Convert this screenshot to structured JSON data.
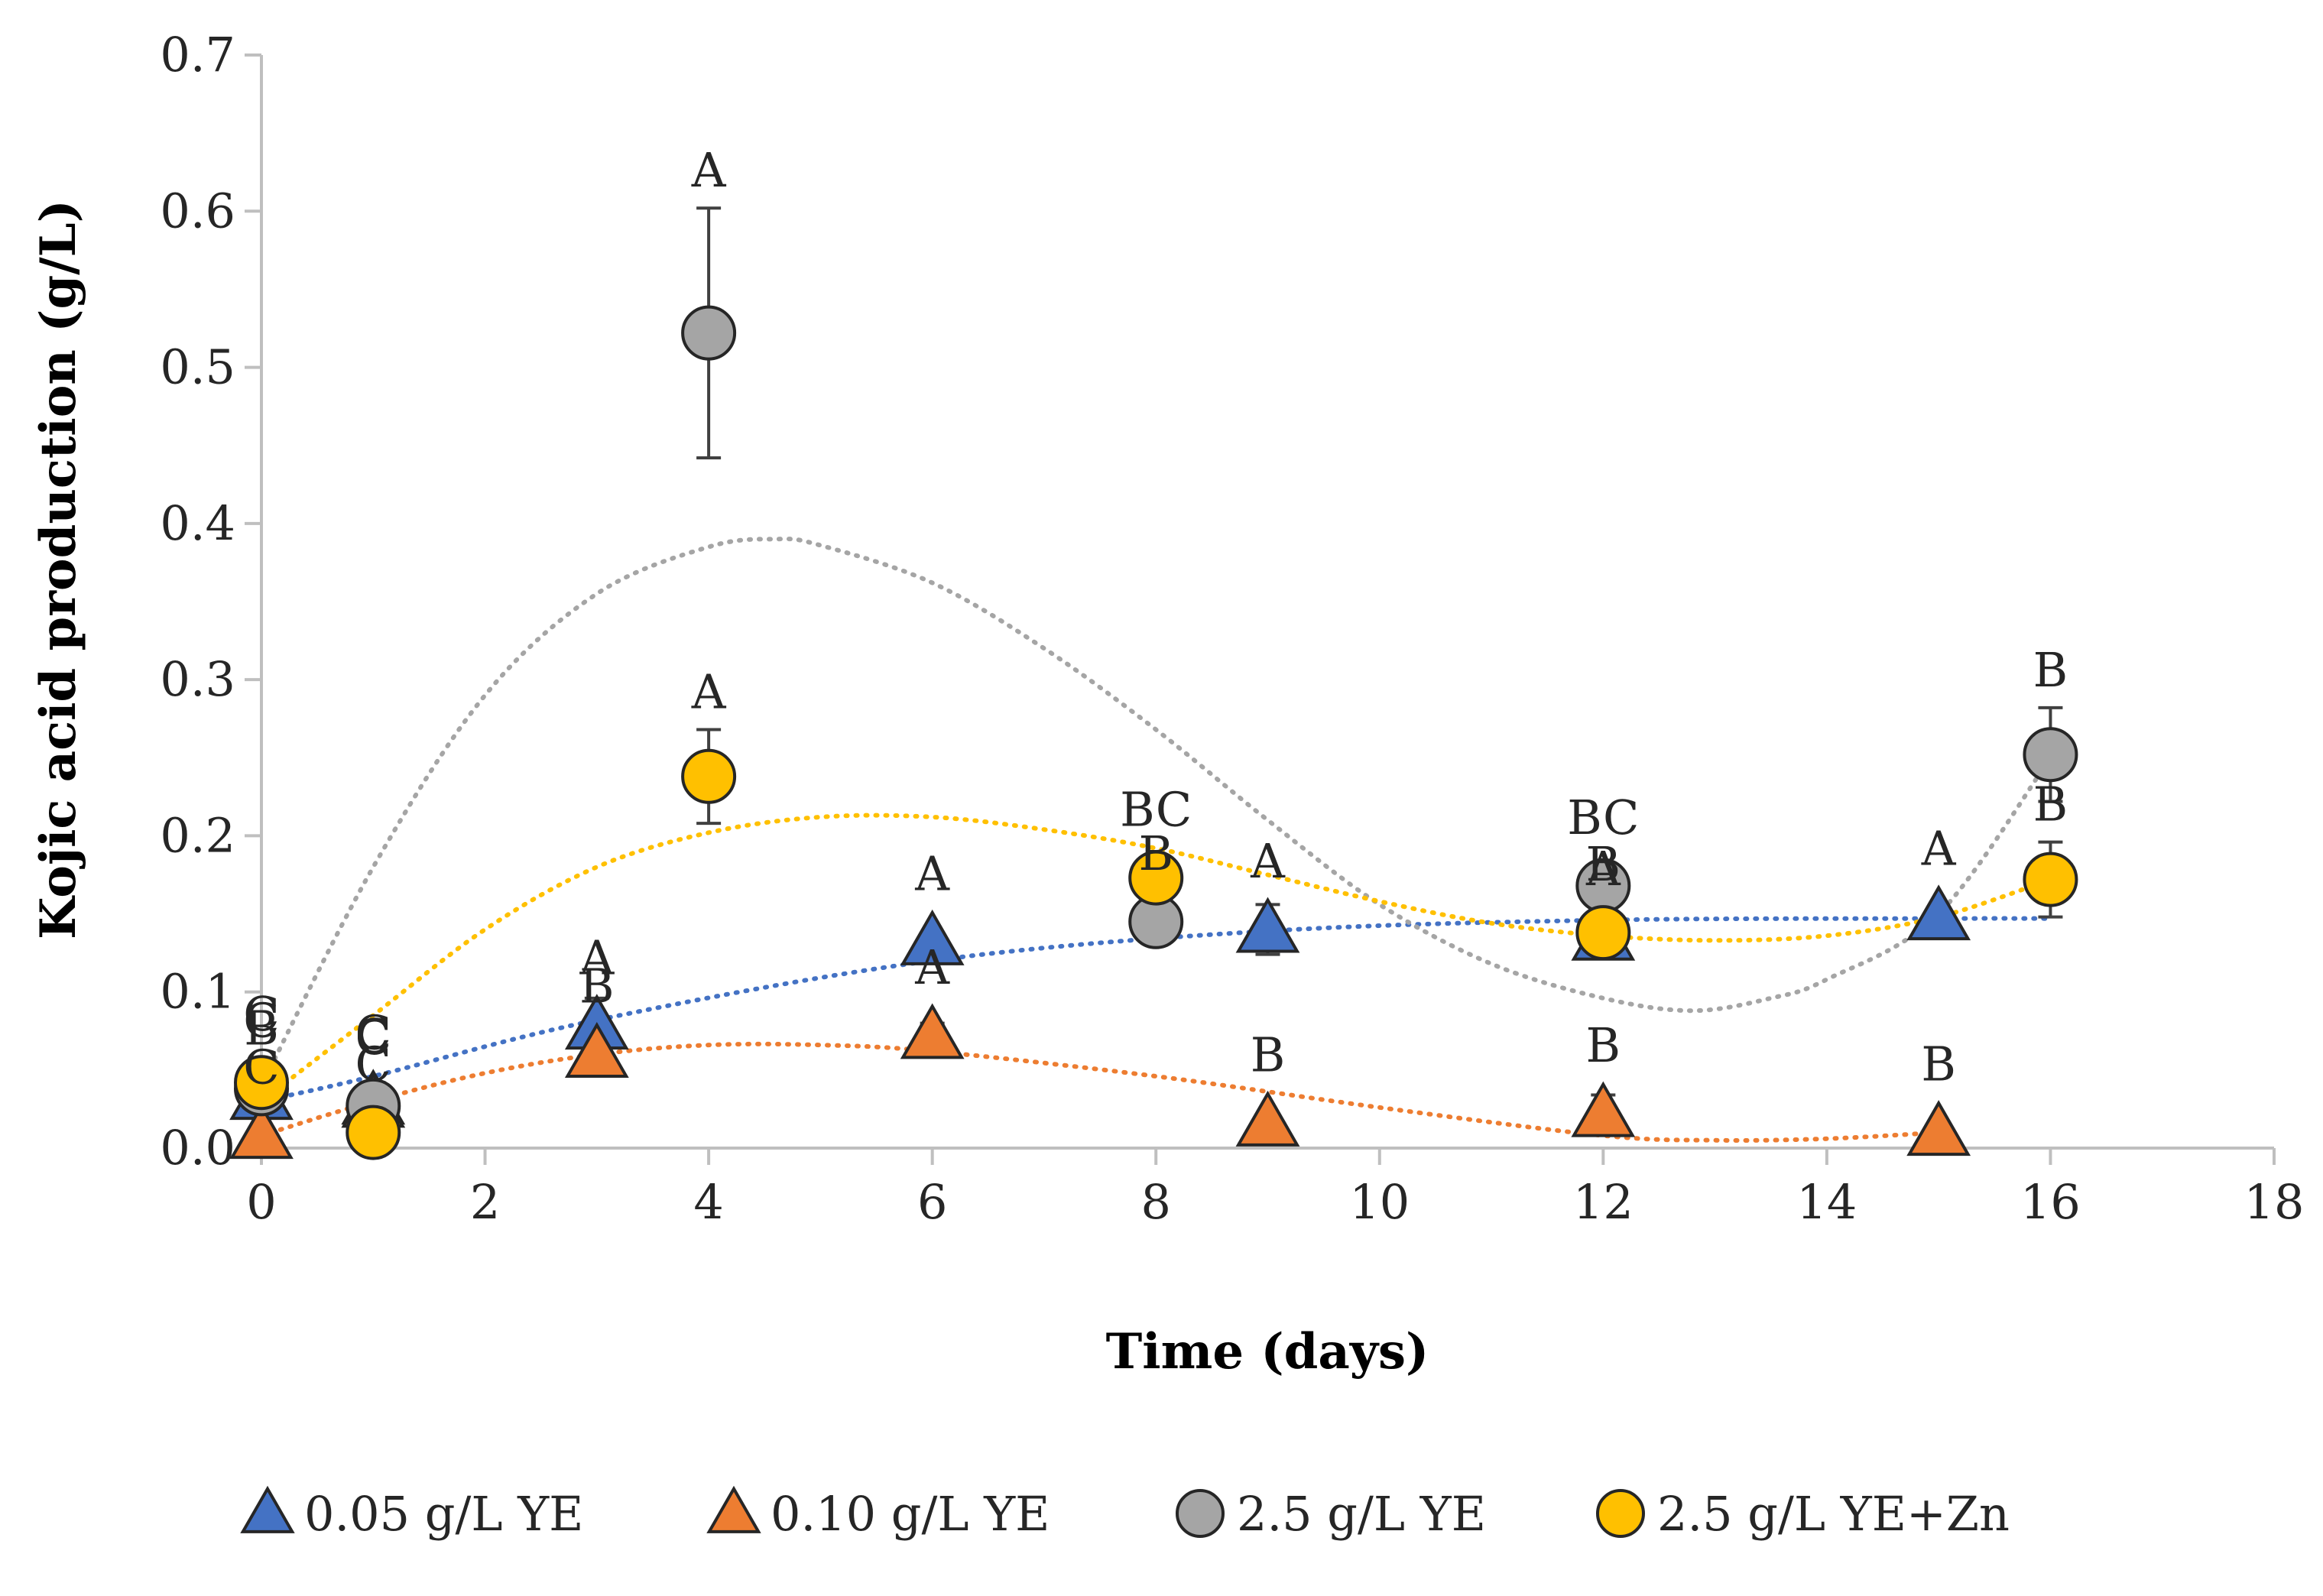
{
  "chart_data": {
    "type": "scatter",
    "title": "",
    "xlabel": "Time (days)",
    "ylabel": "Kojic acid production (g/L)",
    "xlim": [
      0,
      18
    ],
    "ylim": [
      0,
      0.7
    ],
    "xticks": [
      "0",
      "2",
      "4",
      "6",
      "8",
      "10",
      "12",
      "14",
      "16",
      "18"
    ],
    "yticks": [
      "0.0",
      "0.1",
      "0.2",
      "0.3",
      "0.4",
      "0.5",
      "0.6",
      "0.7"
    ],
    "grid": false,
    "legend_position": "bottom",
    "series": [
      {
        "name": "0.05 g/L YE",
        "marker": "triangle",
        "color": "#4472C4",
        "trend_color": "#4472C4",
        "x": [
          0,
          1,
          3,
          6,
          9,
          12,
          15
        ],
        "y": [
          0.033,
          0.03,
          0.078,
          0.132,
          0.14,
          0.135,
          0.148
        ],
        "err": [
          0.005,
          0.012,
          0.018,
          0.006,
          0.016,
          0.008,
          0.004
        ],
        "letters": [
          "B",
          "C",
          "A",
          "A",
          "A",
          "A",
          "A"
        ],
        "trend": [
          [
            0,
            0.03
          ],
          [
            1,
            0.046
          ],
          [
            3,
            0.082
          ],
          [
            6,
            0.12
          ],
          [
            9,
            0.139
          ],
          [
            12,
            0.146
          ],
          [
            15,
            0.147
          ],
          [
            16,
            0.147
          ]
        ]
      },
      {
        "name": "0.10 g/L YE",
        "marker": "triangle",
        "color": "#ED7D31",
        "trend_color": "#ED7D31",
        "x": [
          0,
          1,
          3,
          6,
          9,
          12,
          15
        ],
        "y": [
          0.008,
          0.028,
          0.06,
          0.072,
          0.016,
          0.022,
          0.01
        ],
        "err": [
          0.004,
          0.01,
          0.012,
          0.008,
          0.005,
          0.012,
          0.004
        ],
        "letters": [
          "C",
          "C",
          "B",
          "A",
          "B",
          "B",
          "B"
        ],
        "trend": [
          [
            0,
            0.008
          ],
          [
            1,
            0.03
          ],
          [
            2,
            0.048
          ],
          [
            3,
            0.06
          ],
          [
            4,
            0.066
          ],
          [
            5,
            0.066
          ],
          [
            6,
            0.062
          ],
          [
            8,
            0.046
          ],
          [
            10,
            0.026
          ],
          [
            12,
            0.008
          ],
          [
            13,
            0.005
          ],
          [
            14,
            0.006
          ],
          [
            15,
            0.01
          ]
        ]
      },
      {
        "name": "2.5 g/L YE",
        "marker": "circle",
        "color": "#A5A5A5",
        "trend_color": "#A5A5A5",
        "x": [
          0,
          1,
          4,
          8,
          12,
          16
        ],
        "y": [
          0.038,
          0.027,
          0.522,
          0.145,
          0.168,
          0.252
        ],
        "err": [
          0.006,
          0.008,
          0.08,
          0.01,
          0.012,
          0.03
        ],
        "letters": [
          "C",
          "C",
          "A",
          "B",
          "BC",
          "B"
        ],
        "trend": [
          [
            0,
            0.04
          ],
          [
            1,
            0.18
          ],
          [
            2,
            0.29
          ],
          [
            3,
            0.355
          ],
          [
            4,
            0.385
          ],
          [
            4.6,
            0.39
          ],
          [
            5,
            0.386
          ],
          [
            6,
            0.362
          ],
          [
            7,
            0.32
          ],
          [
            8,
            0.268
          ],
          [
            9,
            0.21
          ],
          [
            10,
            0.156
          ],
          [
            11,
            0.118
          ],
          [
            12,
            0.096
          ],
          [
            12.8,
            0.088
          ],
          [
            13.5,
            0.096
          ],
          [
            14,
            0.108
          ],
          [
            15,
            0.15
          ],
          [
            16,
            0.25
          ]
        ]
      },
      {
        "name": "2.5 g/L YE+Zn",
        "marker": "circle",
        "color": "#FFC000",
        "trend_color": "#FFC000",
        "x": [
          0,
          1,
          4,
          8,
          12,
          16
        ],
        "y": [
          0.042,
          0.01,
          0.238,
          0.173,
          0.138,
          0.172
        ],
        "err": [
          0.006,
          0.006,
          0.03,
          0.014,
          0.01,
          0.024
        ],
        "letters": [
          "C",
          "C",
          "A",
          "BC",
          "B",
          "B"
        ],
        "trend": [
          [
            0,
            0.03
          ],
          [
            1,
            0.085
          ],
          [
            2,
            0.14
          ],
          [
            3,
            0.18
          ],
          [
            4,
            0.202
          ],
          [
            5,
            0.212
          ],
          [
            6,
            0.212
          ],
          [
            7,
            0.204
          ],
          [
            8,
            0.192
          ],
          [
            9,
            0.175
          ],
          [
            10,
            0.158
          ],
          [
            11,
            0.144
          ],
          [
            12,
            0.136
          ],
          [
            13,
            0.133
          ],
          [
            14,
            0.136
          ],
          [
            15,
            0.148
          ],
          [
            16,
            0.172
          ]
        ]
      }
    ]
  }
}
